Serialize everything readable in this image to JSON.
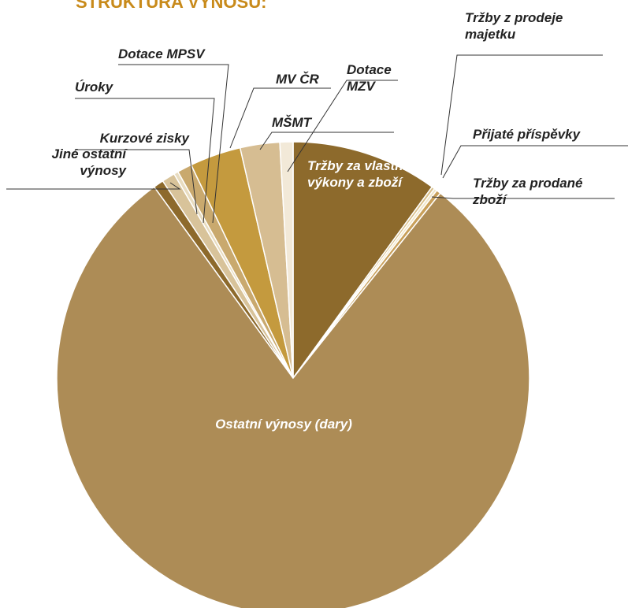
{
  "chart_data": {
    "type": "pie",
    "title": "STRUKTURA VÝNOSŮ:",
    "categories": [
      "Tržby za vlastní výkony a zboží",
      "Tržby z prodeje majetku",
      "Přijaté příspěvky",
      "Tržby za prodané zboží",
      "Ostatní výnosy (dary)",
      "Jiné ostatní výnosy",
      "Kurzové zisky",
      "Úroky",
      "Dotace MPSV",
      "MV ČR",
      "Dotace MZV",
      "MŠMT"
    ],
    "values": [
      10.0,
      0.2,
      0.2,
      0.3,
      79.3,
      0.7,
      0.9,
      0.3,
      1.0,
      3.5,
      2.7,
      0.9
    ],
    "colors": [
      "#8d6a2c",
      "#d9c08a",
      "#f0e6c8",
      "#c9a05a",
      "#ad8c56",
      "#8d6a2c",
      "#d8c39a",
      "#e8dcc0",
      "#c9a96e",
      "#c49a3e",
      "#d6bd92",
      "#f2e9d8"
    ]
  }
}
